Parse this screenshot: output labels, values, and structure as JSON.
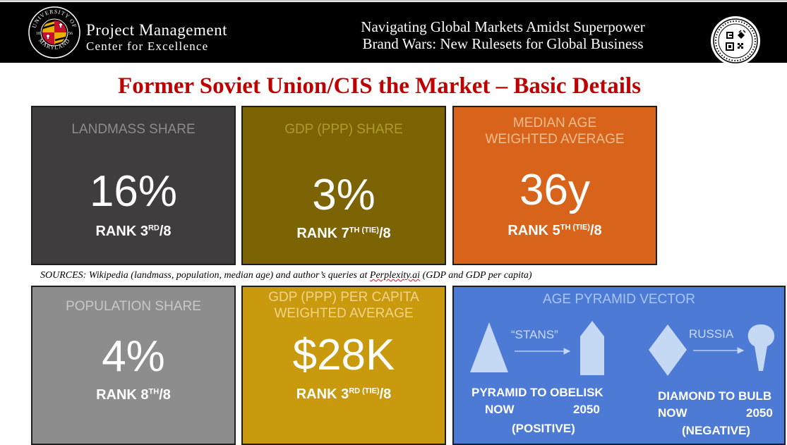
{
  "header": {
    "brand_line1": "Project Management",
    "brand_line2": "Center for Excellence",
    "title_line1": "Navigating Global Markets Amidst Superpower",
    "title_line2": "Brand Wars: New Rulesets for Global Business",
    "seal_text_top": "UNIVERSITY OF",
    "seal_text_bottom": "MARYLAND",
    "seal_year_left": "18",
    "seal_year_right": "56"
  },
  "slide_title": "Former Soviet Union/CIS the Market – Basic Details",
  "cards": {
    "landmass": {
      "label": "LANDMASS SHARE",
      "value": "16%",
      "rank_prefix": "RANK 3",
      "rank_sup": "RD",
      "rank_suffix": "/8"
    },
    "gdp": {
      "label": "GDP (PPP) SHARE",
      "value": "3%",
      "rank_prefix": "RANK 7",
      "rank_sup": "TH (TIE)",
      "rank_suffix": "/8"
    },
    "median_age": {
      "label_line1": "MEDIAN AGE",
      "label_line2": "WEIGHTED AVERAGE",
      "value": "36y",
      "rank_prefix": "RANK 5",
      "rank_sup": "TH (TIE)",
      "rank_suffix": "/8"
    },
    "population": {
      "label": "POPULATION SHARE",
      "value": "4%",
      "rank_prefix": "RANK 8",
      "rank_sup": "TH",
      "rank_suffix": "/8"
    },
    "gdp_per_capita": {
      "label_line1": "GDP (PPP) PER CAPITA",
      "label_line2": "WEIGHTED AVERAGE",
      "value": "$28K",
      "rank_prefix": "RANK 3",
      "rank_sup": "RD (TIE)",
      "rank_suffix": "/8"
    },
    "age_pyramid": {
      "label": "AGE PYRAMID VECTOR",
      "stans_label": "“STANS”",
      "russia_label": "RUSSIA",
      "left_line1": "PYRAMID  TO  OBELISK",
      "left_now": "NOW",
      "left_year": "2050",
      "left_sign": "(POSITIVE)",
      "right_line1": "DIAMOND TO BULB",
      "right_now": "NOW",
      "right_year": "2050",
      "right_sign": "(NEGATIVE)"
    }
  },
  "sources": {
    "prefix": "SOURCES: Wikipedia (landmass, population, median age) and author’s queries at ",
    "link": "Perplexity.ai",
    "suffix": " (GDP and GDP per capita)"
  },
  "colors": {
    "header_bg": "#000000",
    "title_red": "#c00000",
    "landmass_bg": "#3f3d3d",
    "gdp_bg": "#7c6304",
    "median_age_bg": "#d8631a",
    "population_bg": "#8d8d8d",
    "gdp_per_capita_bg": "#c99a0e",
    "age_pyramid_bg": "#4c7ad4"
  }
}
